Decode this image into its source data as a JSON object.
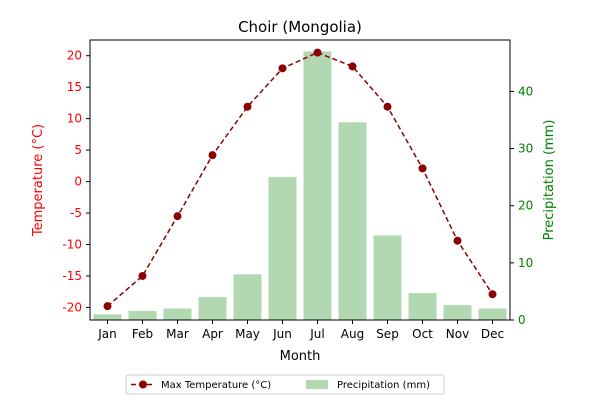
{
  "chart_data": {
    "type": "bar+line",
    "title": "Choir (Mongolia)",
    "xlabel": "Month",
    "categories": [
      "Jan",
      "Feb",
      "Mar",
      "Apr",
      "May",
      "Jun",
      "Jul",
      "Aug",
      "Sep",
      "Oct",
      "Nov",
      "Dec"
    ],
    "left_axis": {
      "label": "Temperature (°C)",
      "ylim": [
        -22,
        22.5
      ],
      "ticks": [
        -20,
        -15,
        -10,
        -5,
        0,
        5,
        10,
        15,
        20
      ],
      "color": "#ff0000"
    },
    "right_axis": {
      "label": "Precipitation (mm)",
      "ylim": [
        0,
        49
      ],
      "ticks": [
        0,
        10,
        20,
        30,
        40
      ],
      "color": "#008000"
    },
    "series": [
      {
        "name": "Max Temperature (°C)",
        "type": "line",
        "axis": "left",
        "color": "#8b0000",
        "style": "dashed",
        "marker": "circle",
        "values": [
          -19.8,
          -15.0,
          -5.5,
          4.2,
          11.9,
          18.0,
          20.5,
          18.3,
          11.9,
          2.1,
          -9.4,
          -17.9
        ]
      },
      {
        "name": "Precipitation (mm)",
        "type": "bar",
        "axis": "right",
        "color": "#b2d8b2",
        "values": [
          1.0,
          1.6,
          2.0,
          4.0,
          8.0,
          25.0,
          47.0,
          34.6,
          14.8,
          4.7,
          2.6,
          2.0
        ]
      }
    ],
    "legend": {
      "placement": "bottom-center",
      "columns": 2
    }
  }
}
